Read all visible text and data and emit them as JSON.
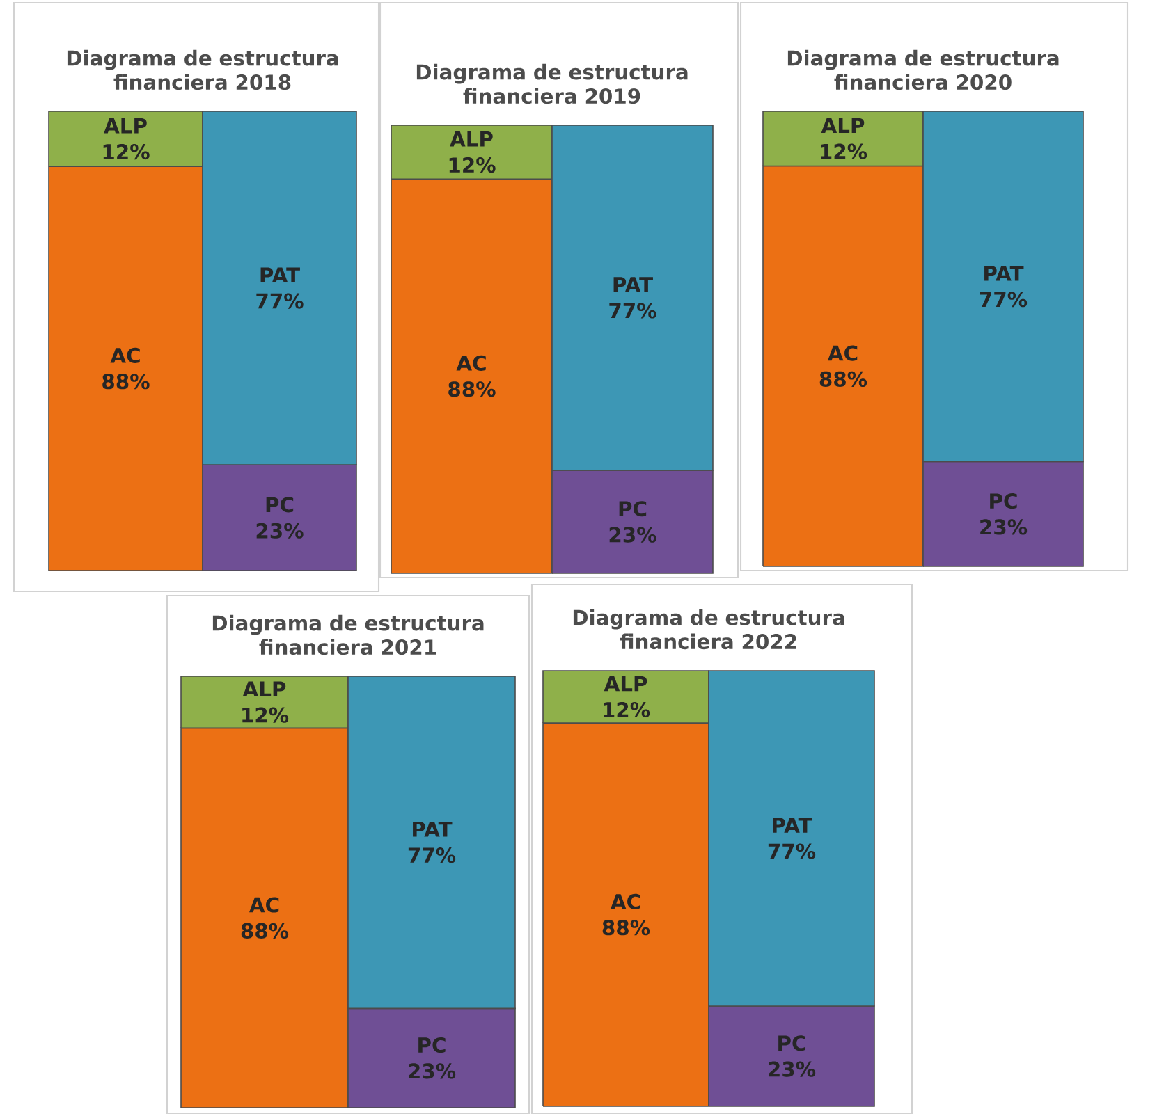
{
  "chart_data": [
    {
      "type": "bar",
      "stacked": true,
      "title": "Diagrama de estructura financiera  2018",
      "categories": [
        null,
        null
      ],
      "series": [
        {
          "name": "AC",
          "color": "#ec7014",
          "values": [
            88,
            null
          ],
          "value_labels": [
            "88%",
            null
          ]
        },
        {
          "name": "ALP",
          "color": "#8fb04a",
          "values": [
            12,
            null
          ],
          "value_labels": [
            "12%",
            null
          ]
        },
        {
          "name": "PC",
          "color": "#6f4f95",
          "values": [
            null,
            23
          ],
          "value_labels": [
            null,
            "23%"
          ]
        },
        {
          "name": "PAT",
          "color": "#3d97b5",
          "values": [
            null,
            77
          ],
          "value_labels": [
            null,
            "77%"
          ]
        }
      ]
    },
    {
      "type": "bar",
      "stacked": true,
      "title": "Diagrama de estructura financiera  2019",
      "categories": [
        null,
        null
      ],
      "series": [
        {
          "name": "AC",
          "color": "#ec7014",
          "values": [
            88,
            null
          ],
          "value_labels": [
            "88%",
            null
          ]
        },
        {
          "name": "ALP",
          "color": "#8fb04a",
          "values": [
            12,
            null
          ],
          "value_labels": [
            "12%",
            null
          ]
        },
        {
          "name": "PC",
          "color": "#6f4f95",
          "values": [
            null,
            23
          ],
          "value_labels": [
            null,
            "23%"
          ]
        },
        {
          "name": "PAT",
          "color": "#3d97b5",
          "values": [
            null,
            77
          ],
          "value_labels": [
            null,
            "77%"
          ]
        }
      ]
    },
    {
      "type": "bar",
      "stacked": true,
      "title": "Diagrama de estructura financiera  2020",
      "categories": [
        null,
        null
      ],
      "series": [
        {
          "name": "AC",
          "color": "#ec7014",
          "values": [
            88,
            null
          ],
          "value_labels": [
            "88%",
            null
          ]
        },
        {
          "name": "ALP",
          "color": "#8fb04a",
          "values": [
            12,
            null
          ],
          "value_labels": [
            "12%",
            null
          ]
        },
        {
          "name": "PC",
          "color": "#6f4f95",
          "values": [
            null,
            23
          ],
          "value_labels": [
            null,
            "23%"
          ]
        },
        {
          "name": "PAT",
          "color": "#3d97b5",
          "values": [
            null,
            77
          ],
          "value_labels": [
            null,
            "77%"
          ]
        }
      ]
    },
    {
      "type": "bar",
      "stacked": true,
      "title": "Diagrama de estructura financiera  2021",
      "categories": [
        null,
        null
      ],
      "series": [
        {
          "name": "AC",
          "color": "#ec7014",
          "values": [
            88,
            null
          ],
          "value_labels": [
            "88%",
            null
          ]
        },
        {
          "name": "ALP",
          "color": "#8fb04a",
          "values": [
            12,
            null
          ],
          "value_labels": [
            "12%",
            null
          ]
        },
        {
          "name": "PC",
          "color": "#6f4f95",
          "values": [
            null,
            23
          ],
          "value_labels": [
            null,
            "23%"
          ]
        },
        {
          "name": "PAT",
          "color": "#3d97b5",
          "values": [
            null,
            77
          ],
          "value_labels": [
            null,
            "77%"
          ]
        }
      ]
    },
    {
      "type": "bar",
      "stacked": true,
      "title": "Diagrama de estructura financiera  2022",
      "categories": [
        null,
        null
      ],
      "series": [
        {
          "name": "AC",
          "color": "#ec7014",
          "values": [
            88,
            null
          ],
          "value_labels": [
            "88%",
            null
          ]
        },
        {
          "name": "ALP",
          "color": "#8fb04a",
          "values": [
            12,
            null
          ],
          "value_labels": [
            "12%",
            null
          ]
        },
        {
          "name": "PC",
          "color": "#6f4f95",
          "values": [
            null,
            23
          ],
          "value_labels": [
            null,
            "23%"
          ]
        },
        {
          "name": "PAT",
          "color": "#3d97b5",
          "values": [
            null,
            77
          ],
          "value_labels": [
            null,
            "77%"
          ]
        }
      ]
    }
  ]
}
